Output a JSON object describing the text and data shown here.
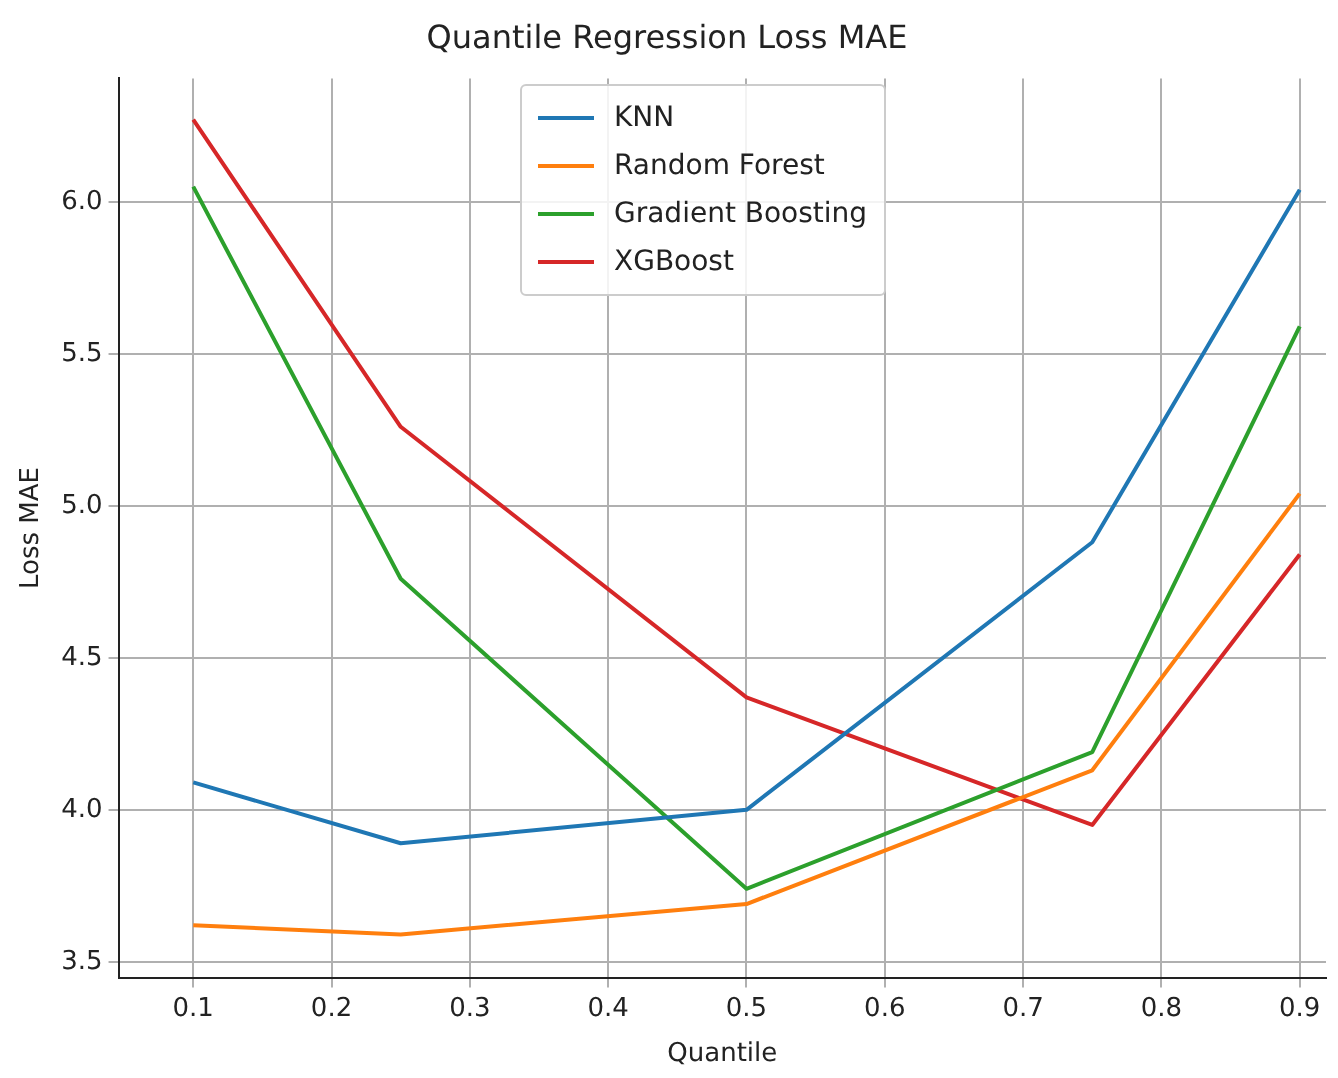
{
  "chart_data": {
    "type": "line",
    "title": "Quantile Regression Loss MAE",
    "xlabel": "Quantile",
    "ylabel": "Loss MAE",
    "x": [
      0.1,
      0.25,
      0.5,
      0.75,
      0.9
    ],
    "series": [
      {
        "name": "KNN",
        "color": "#1f77b4",
        "values": [
          4.09,
          3.89,
          4.0,
          4.88,
          6.04
        ]
      },
      {
        "name": "Random Forest",
        "color": "#ff7f0e",
        "values": [
          3.62,
          3.59,
          3.69,
          4.13,
          5.04
        ]
      },
      {
        "name": "Gradient Boosting",
        "color": "#2ca02c",
        "values": [
          6.05,
          4.76,
          3.74,
          4.19,
          5.59
        ]
      },
      {
        "name": "XGBoost",
        "color": "#d62728",
        "values": [
          6.27,
          5.26,
          4.37,
          3.95,
          4.84
        ]
      }
    ],
    "xlim": [
      0.046,
      0.919
    ],
    "xticks": [
      0.1,
      0.2,
      0.3,
      0.4,
      0.5,
      0.6,
      0.7,
      0.8,
      0.9
    ],
    "ylim": [
      3.448,
      6.406
    ],
    "yticks": [
      3.5,
      {
        "value": 4,
        "label": "4.0"
      },
      4.5,
      {
        "value": 5,
        "label": "5.0"
      },
      5.5,
      {
        "value": 6,
        "label": "6.0"
      }
    ],
    "grid": true,
    "legend": "top",
    "marker": "none",
    "line_style": "solid"
  }
}
